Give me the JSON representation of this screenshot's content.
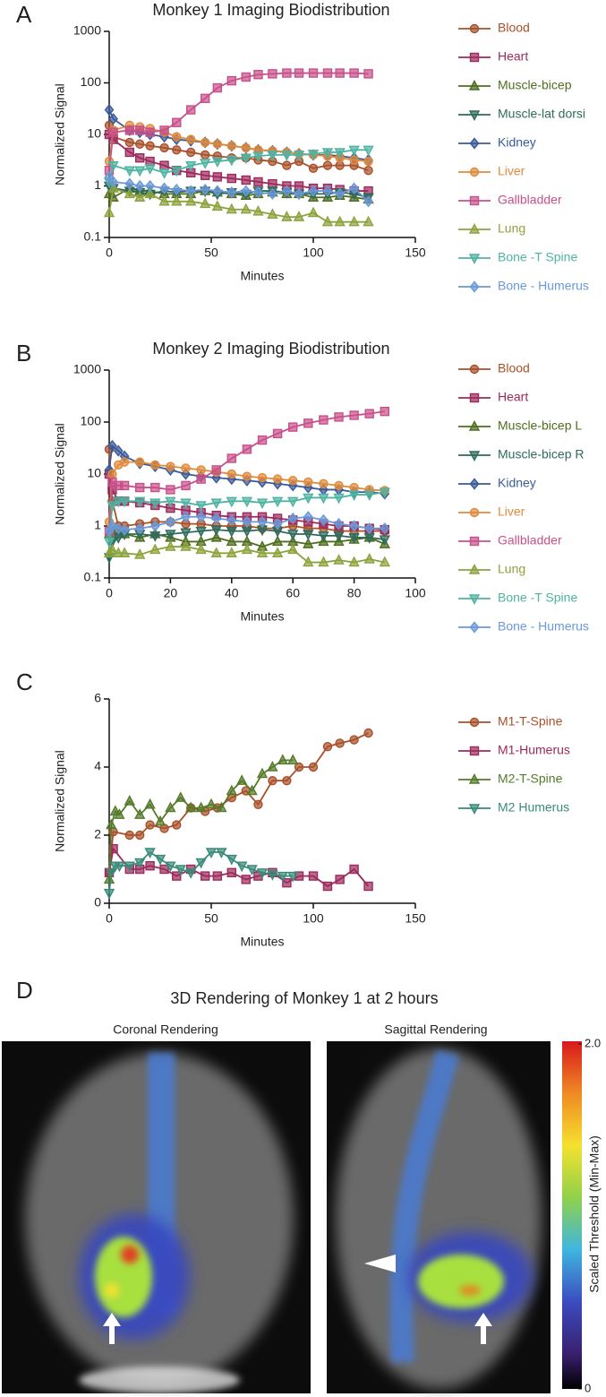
{
  "chart_data": [
    {
      "type": "line",
      "panel_label": "A",
      "title": "Monkey 1 Imaging Biodistribution",
      "xlabel": "Minutes",
      "ylabel": "Normalized Signal",
      "yscale": "log",
      "grid": false,
      "legend": "right",
      "xlim": [
        0,
        150
      ],
      "xticks": [
        0,
        50,
        100,
        150
      ],
      "ylim": [
        0.1,
        1000
      ],
      "yticks": [
        0.1,
        1,
        10,
        100,
        1000
      ],
      "x": [
        0,
        2,
        10,
        15,
        20,
        27,
        33,
        40,
        47,
        53,
        60,
        67,
        73,
        80,
        87,
        93,
        100,
        107,
        113,
        120,
        127
      ],
      "series": [
        {
          "name": "Blood",
          "color": "#a9502a",
          "marker": "circle",
          "values": [
            15,
            9,
            7,
            6.5,
            6,
            5.5,
            5,
            4.5,
            4,
            3.8,
            3.5,
            3.5,
            3.2,
            3,
            2.5,
            3,
            2.2,
            2.5,
            2.5,
            2.5,
            2
          ]
        },
        {
          "name": "Heart",
          "color": "#9c2a5c",
          "marker": "square",
          "values": [
            10,
            8,
            4.5,
            3.5,
            3,
            2.5,
            2,
            1.8,
            1.6,
            1.5,
            1.4,
            1.3,
            1.2,
            1.1,
            1,
            1,
            0.9,
            0.9,
            0.85,
            0.8,
            0.8
          ]
        },
        {
          "name": "Muscle-bicep",
          "color": "#4e6e1e",
          "marker": "triangle-up",
          "values": [
            0.7,
            0.6,
            0.9,
            0.8,
            0.8,
            0.7,
            0.7,
            0.7,
            0.8,
            0.75,
            0.7,
            0.65,
            0.7,
            0.75,
            0.7,
            0.7,
            0.6,
            0.6,
            0.65,
            0.6,
            0.55
          ]
        },
        {
          "name": "Muscle-lat dorsi",
          "color": "#2d6b5c",
          "marker": "triangle-down",
          "values": [
            1.0,
            0.9,
            0.8,
            0.75,
            0.7,
            0.8,
            0.75,
            0.8,
            0.8,
            0.7,
            0.75,
            0.7,
            0.8,
            0.8,
            0.75,
            0.7,
            0.7,
            0.7,
            0.75,
            0.7,
            0.6
          ]
        },
        {
          "name": "Kidney",
          "color": "#3b5a9a",
          "marker": "diamond",
          "values": [
            30,
            20,
            12,
            11,
            10,
            9,
            8,
            7.5,
            7,
            6.5,
            6,
            5.5,
            5,
            4.8,
            4.5,
            4.2,
            4,
            4,
            3.8,
            3.5,
            3.2
          ]
        },
        {
          "name": "Liver",
          "color": "#e08a3c",
          "marker": "circle",
          "values": [
            3,
            12,
            15,
            14,
            13,
            11,
            9,
            8,
            7,
            6.5,
            6,
            5.5,
            5,
            4.8,
            4.5,
            4.2,
            4,
            3.8,
            3.5,
            3.2,
            3
          ]
        },
        {
          "name": "Gallbladder",
          "color": "#c8508a",
          "marker": "square",
          "values": [
            2,
            11,
            12,
            12,
            11,
            12,
            17,
            30,
            50,
            80,
            110,
            130,
            145,
            150,
            155,
            155,
            155,
            155,
            155,
            155,
            150
          ]
        },
        {
          "name": "Lung",
          "color": "#8ca23c",
          "marker": "triangle-up",
          "values": [
            0.3,
            0.9,
            0.7,
            0.6,
            0.7,
            0.5,
            0.5,
            0.5,
            0.45,
            0.4,
            0.35,
            0.35,
            0.32,
            0.28,
            0.25,
            0.25,
            0.3,
            0.2,
            0.2,
            0.2,
            0.2
          ]
        },
        {
          "name": "Bone -T Spine",
          "color": "#4fb3a2",
          "marker": "triangle-down",
          "values": [
            1.2,
            2.5,
            2,
            2,
            2.2,
            1.8,
            2,
            2.5,
            2.8,
            3,
            3.2,
            3.5,
            3.8,
            4,
            4,
            4,
            4.2,
            4.5,
            4.5,
            5,
            5
          ]
        },
        {
          "name": "Bone - Humerus",
          "color": "#6a98d8",
          "marker": "diamond",
          "values": [
            1.5,
            1.2,
            1.1,
            1,
            1,
            0.9,
            0.85,
            0.8,
            0.85,
            0.8,
            0.75,
            0.8,
            0.75,
            0.7,
            0.8,
            0.7,
            0.8,
            0.8,
            0.7,
            0.9,
            0.5
          ]
        }
      ]
    },
    {
      "type": "line",
      "panel_label": "B",
      "title": "Monkey 2 Imaging Biodistribution",
      "xlabel": "Minutes",
      "ylabel": "Normalized Signal",
      "yscale": "log",
      "grid": false,
      "legend": "right",
      "xlim": [
        0,
        100
      ],
      "xticks": [
        0,
        20,
        40,
        60,
        80,
        100
      ],
      "ylim": [
        0.1,
        1000
      ],
      "yticks": [
        0.1,
        1,
        10,
        100,
        1000
      ],
      "x": [
        0,
        1,
        3,
        5,
        10,
        15,
        20,
        25,
        30,
        35,
        40,
        45,
        50,
        55,
        60,
        65,
        70,
        75,
        80,
        85,
        90
      ],
      "series": [
        {
          "name": "Blood",
          "color": "#a9502a",
          "marker": "circle",
          "values": [
            30,
            3,
            1,
            1,
            1.1,
            1.2,
            1.2,
            1.1,
            1.1,
            1.0,
            1.0,
            1.0,
            0.9,
            0.9,
            1.0,
            0.9,
            0.9,
            0.8,
            0.8,
            0.8,
            0.8
          ]
        },
        {
          "name": "Heart",
          "color": "#9c2a5c",
          "marker": "square",
          "values": [
            10,
            5,
            3,
            3,
            2.8,
            2.5,
            2.2,
            2,
            1.8,
            1.6,
            1.5,
            1.5,
            1.5,
            1.4,
            1.3,
            1.2,
            1.1,
            1.0,
            1.0,
            0.9,
            0.85
          ]
        },
        {
          "name": "Muscle-bicep L",
          "color": "#4e6e1e",
          "marker": "triangle-up",
          "values": [
            0.7,
            0.8,
            0.7,
            0.7,
            0.6,
            0.7,
            0.6,
            0.5,
            0.5,
            0.6,
            0.5,
            0.5,
            0.4,
            0.5,
            0.5,
            0.45,
            0.5,
            0.5,
            0.55,
            0.6,
            0.45
          ]
        },
        {
          "name": "Muscle-bicep R",
          "color": "#2d6b5c",
          "marker": "triangle-down",
          "values": [
            0.25,
            0.5,
            0.6,
            0.7,
            0.7,
            0.65,
            0.7,
            0.75,
            0.8,
            0.85,
            0.8,
            0.8,
            0.85,
            0.8,
            0.7,
            0.7,
            0.65,
            0.65,
            0.6,
            0.6,
            0.55
          ]
        },
        {
          "name": "Kidney",
          "color": "#3b5a9a",
          "marker": "diamond",
          "values": [
            12,
            35,
            28,
            22,
            16,
            14,
            12,
            10,
            9,
            8.5,
            8,
            7.5,
            7,
            6.5,
            6,
            5.5,
            5,
            5,
            4.5,
            4.5,
            4.2
          ]
        },
        {
          "name": "Liver",
          "color": "#e08a3c",
          "marker": "circle",
          "values": [
            1.2,
            10,
            15,
            17,
            17,
            15,
            14,
            13,
            12,
            11,
            10,
            9,
            8.5,
            8,
            7.5,
            7,
            6.5,
            6,
            5.5,
            5,
            4.8
          ]
        },
        {
          "name": "Gallbladder",
          "color": "#c8508a",
          "marker": "square",
          "values": [
            0.8,
            7,
            6,
            6,
            5.5,
            5.5,
            5,
            6,
            8,
            12,
            20,
            30,
            45,
            60,
            80,
            95,
            110,
            125,
            135,
            145,
            160
          ]
        },
        {
          "name": "Lung",
          "color": "#8ca23c",
          "marker": "triangle-up",
          "values": [
            0.3,
            0.35,
            0.3,
            0.3,
            0.28,
            0.35,
            0.4,
            0.4,
            0.35,
            0.3,
            0.3,
            0.35,
            0.3,
            0.3,
            0.35,
            0.2,
            0.2,
            0.22,
            0.2,
            0.23,
            0.2
          ]
        },
        {
          "name": "Bone -T Spine",
          "color": "#4fb3a2",
          "marker": "triangle-down",
          "values": [
            0.5,
            2.5,
            3,
            3,
            3,
            2.8,
            3,
            2.8,
            2.5,
            2.8,
            3,
            3,
            2.8,
            3,
            3,
            3.5,
            3.5,
            3.5,
            4,
            4,
            4.5
          ]
        },
        {
          "name": "Bone - Humerus",
          "color": "#6a98d8",
          "marker": "diamond",
          "values": [
            0.8,
            1,
            0.9,
            0.85,
            0.9,
            1,
            1.2,
            1.5,
            1.5,
            1.4,
            1.3,
            1.2,
            1.2,
            1.1,
            1.4,
            1.5,
            1.3,
            1.1,
            1.0,
            0.9,
            0.9
          ]
        }
      ]
    },
    {
      "type": "line",
      "panel_label": "C",
      "xlabel": "Minutes",
      "ylabel": "Normalized Signal",
      "yscale": "linear",
      "grid": false,
      "legend": "right",
      "xlim": [
        0,
        150
      ],
      "xticks": [
        0,
        50,
        100,
        150
      ],
      "ylim": [
        0,
        6
      ],
      "yticks": [
        0,
        2,
        4,
        6
      ],
      "series": [
        {
          "name": "M1-T-Spine",
          "color": "#a9502a",
          "marker": "circle",
          "x": [
            0,
            2,
            10,
            15,
            20,
            27,
            33,
            40,
            47,
            53,
            60,
            67,
            73,
            80,
            87,
            93,
            100,
            107,
            113,
            120,
            127
          ],
          "values": [
            0.9,
            2.1,
            2.0,
            2.0,
            2.3,
            2.2,
            2.3,
            2.8,
            2.7,
            2.8,
            3.1,
            3.3,
            2.9,
            3.6,
            3.6,
            4.0,
            4.0,
            4.6,
            4.7,
            4.8,
            5.0
          ]
        },
        {
          "name": "M1-Humerus",
          "color": "#9c2a5c",
          "marker": "square",
          "x": [
            0,
            2,
            10,
            15,
            20,
            27,
            33,
            40,
            47,
            53,
            60,
            67,
            73,
            80,
            87,
            93,
            100,
            107,
            113,
            120,
            127
          ],
          "values": [
            0.9,
            1.6,
            1.0,
            1.0,
            1.1,
            1.0,
            0.8,
            1.0,
            0.8,
            0.8,
            0.9,
            0.7,
            0.8,
            0.9,
            0.6,
            0.8,
            0.8,
            0.5,
            0.7,
            1.0,
            0.5
          ]
        },
        {
          "name": "M2-T-Spine",
          "color": "#557a2a",
          "marker": "triangle-up",
          "x": [
            0,
            1,
            3,
            5,
            10,
            15,
            20,
            25,
            30,
            35,
            40,
            45,
            50,
            55,
            60,
            65,
            70,
            75,
            80,
            85,
            90
          ],
          "values": [
            0.7,
            2.3,
            2.7,
            2.6,
            3.0,
            2.6,
            2.9,
            2.4,
            2.8,
            3.1,
            2.8,
            2.8,
            2.9,
            2.8,
            3.3,
            3.6,
            3.3,
            3.8,
            4.0,
            4.2,
            4.2
          ]
        },
        {
          "name": "M2 Humerus",
          "color": "#3a8a7a",
          "marker": "triangle-down",
          "x": [
            0,
            1,
            3,
            5,
            10,
            15,
            20,
            25,
            30,
            35,
            40,
            45,
            50,
            55,
            60,
            65,
            70,
            75,
            80,
            85,
            90
          ],
          "values": [
            0.3,
            0.9,
            1.1,
            1.1,
            1.1,
            1.2,
            1.5,
            1.3,
            1.1,
            1.0,
            0.9,
            1.2,
            1.5,
            1.5,
            1.3,
            1.1,
            1.0,
            0.9,
            0.85,
            0.8,
            0.8
          ]
        }
      ]
    }
  ],
  "rendering": {
    "panel_label": "D",
    "title": "3D Rendering of Monkey 1 at 2 hours",
    "views": [
      {
        "label": "Coronal Rendering"
      },
      {
        "label": "Sagittal Rendering"
      }
    ],
    "colorbar": {
      "label": "Scaled Threshold (Min-Max)",
      "lim": [
        0,
        2
      ],
      "ticks": [
        0,
        {
          "value": 2,
          "label": "2.0"
        }
      ]
    }
  }
}
